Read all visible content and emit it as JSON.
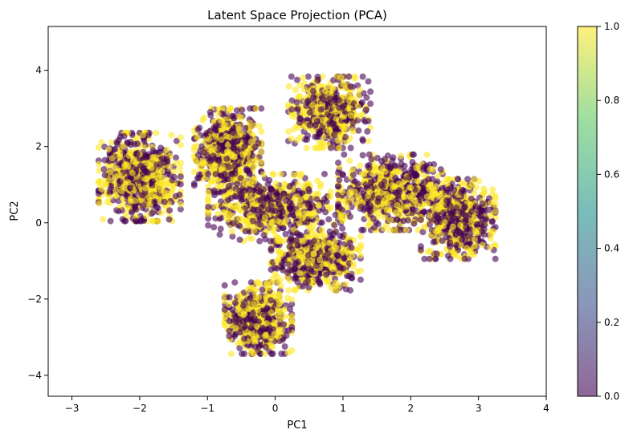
{
  "chart_data": {
    "type": "scatter",
    "title": "Latent Space Projection (PCA)",
    "xlabel": "PC1",
    "ylabel": "PC2",
    "xlim": [
      -3.35,
      4.0
    ],
    "ylim": [
      -4.55,
      5.15
    ],
    "xticks": [
      -3,
      -2,
      -1,
      0,
      1,
      2,
      3,
      4
    ],
    "yticks": [
      -4,
      -2,
      0,
      2,
      4
    ],
    "grid": false,
    "point_alpha": 0.6,
    "colormap": "viridis",
    "colormap_stops": [
      "#440154",
      "#3b528b",
      "#21918c",
      "#5ec962",
      "#fde725"
    ],
    "color_value_range": [
      0,
      1
    ],
    "point_values": "binary labels 0 (dark purple) and 1 (yellow), randomly intermixed",
    "clusters": [
      {
        "center": [
          -2.0,
          1.2
        ],
        "spread": [
          0.55,
          1.05
        ],
        "count": 800
      },
      {
        "center": [
          -0.7,
          1.9
        ],
        "spread": [
          0.45,
          1.0
        ],
        "count": 700
      },
      {
        "center": [
          0.8,
          2.9
        ],
        "spread": [
          0.55,
          0.85
        ],
        "count": 600
      },
      {
        "center": [
          1.7,
          0.8
        ],
        "spread": [
          0.7,
          0.9
        ],
        "count": 700
      },
      {
        "center": [
          2.7,
          0.1
        ],
        "spread": [
          0.5,
          0.95
        ],
        "count": 650
      },
      {
        "center": [
          -0.25,
          -2.5
        ],
        "spread": [
          0.45,
          0.85
        ],
        "count": 650
      },
      {
        "center": [
          0.6,
          -1.0
        ],
        "spread": [
          0.6,
          0.7
        ],
        "count": 550
      },
      {
        "center": [
          0.0,
          0.4
        ],
        "spread": [
          0.9,
          0.8
        ],
        "count": 650
      }
    ],
    "colorbar": {
      "min": 0.0,
      "max": 1.0,
      "ticks": [
        "0.0",
        "0.2",
        "0.4",
        "0.6",
        "0.8",
        "1.0"
      ]
    }
  }
}
